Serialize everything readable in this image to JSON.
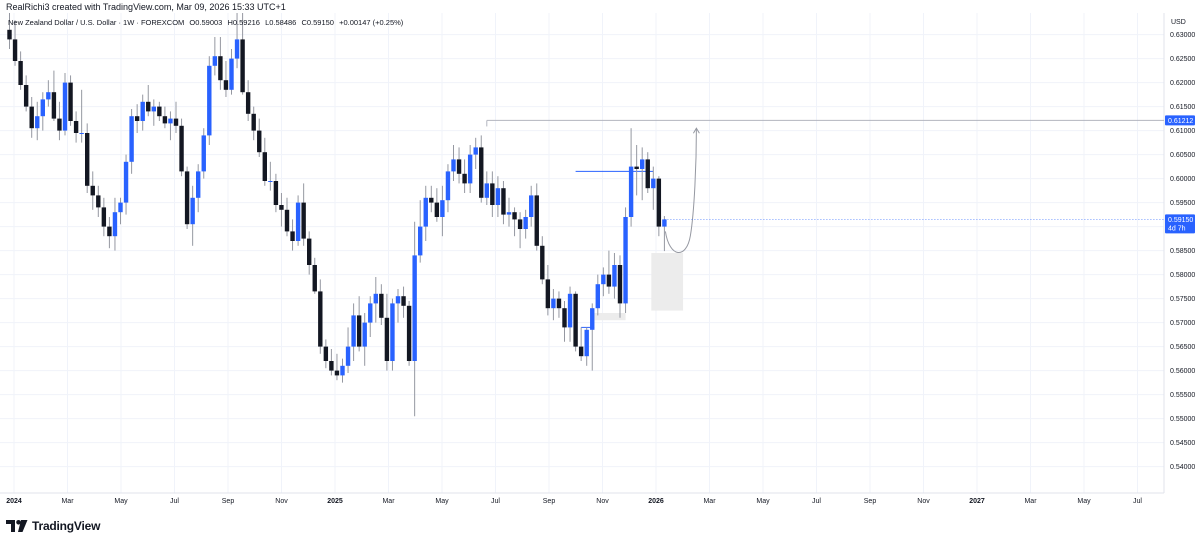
{
  "header": {
    "attribution": "RealRichi3 created with TradingView.com, Mar 09, 2026 15:33 UTC+1"
  },
  "legend": {
    "symbol": "New Zealand Dollar / U.S. Dollar · 1W · FOREXCOM",
    "open": "O0.59003",
    "high": "H0.59216",
    "low": "L0.58486",
    "close": "C0.59150",
    "change": "+0.00147 (+0.25%)"
  },
  "price_axis": {
    "currency": "USD",
    "ticks": [
      "0.63000",
      "0.62500",
      "0.62000",
      "0.61500",
      "0.61000",
      "0.60500",
      "0.60000",
      "0.59500",
      "0.59000",
      "0.58500",
      "0.58000",
      "0.57500",
      "0.57000",
      "0.56500",
      "0.56000",
      "0.55500",
      "0.55000",
      "0.54500",
      "0.54000"
    ],
    "marker_level": "0.61212",
    "current_price": "0.59150",
    "countdown": "4d 7h"
  },
  "time_axis": {
    "labels": [
      "2024",
      "Mar",
      "May",
      "Jul",
      "Sep",
      "Nov",
      "2025",
      "Mar",
      "May",
      "Jul",
      "Sep",
      "Nov",
      "2026",
      "Mar",
      "May",
      "Jul",
      "Sep",
      "Nov",
      "2027",
      "Mar",
      "May",
      "Jul"
    ],
    "bold": [
      "2024",
      "2025",
      "2026",
      "2027"
    ]
  },
  "footer": {
    "brand": "TradingView"
  },
  "colors": {
    "bull": "#2962ff",
    "bear": "#131722",
    "wick": "#9598a1",
    "grid": "#f0f3fa",
    "zone": "#ececec",
    "level_line": "#b2b5be",
    "blue_line": "#2962ff"
  },
  "chart_data": {
    "type": "candlestick",
    "timeframe": "1W",
    "ylim": [
      0.5345,
      0.6345
    ],
    "x_start": "2024-01-01",
    "weeks_shown": 143,
    "candles": [
      [
        0.631,
        0.6348,
        0.627,
        0.629
      ],
      [
        0.629,
        0.633,
        0.6235,
        0.6245
      ],
      [
        0.6245,
        0.6265,
        0.6185,
        0.6195
      ],
      [
        0.6195,
        0.6215,
        0.614,
        0.615
      ],
      [
        0.615,
        0.617,
        0.6085,
        0.6105
      ],
      [
        0.6105,
        0.616,
        0.608,
        0.613
      ],
      [
        0.613,
        0.618,
        0.61,
        0.6165
      ],
      [
        0.6165,
        0.6205,
        0.615,
        0.618
      ],
      [
        0.618,
        0.6225,
        0.612,
        0.6125
      ],
      [
        0.6125,
        0.616,
        0.608,
        0.61
      ],
      [
        0.61,
        0.622,
        0.609,
        0.62
      ],
      [
        0.62,
        0.6215,
        0.611,
        0.612
      ],
      [
        0.612,
        0.614,
        0.6075,
        0.6095
      ],
      [
        0.6095,
        0.6185,
        0.6075,
        0.6095
      ],
      [
        0.6095,
        0.6115,
        0.597,
        0.5985
      ],
      [
        0.5985,
        0.6015,
        0.5935,
        0.5965
      ],
      [
        0.5965,
        0.5985,
        0.592,
        0.594
      ],
      [
        0.594,
        0.596,
        0.588,
        0.59
      ],
      [
        0.59,
        0.592,
        0.5855,
        0.588
      ],
      [
        0.588,
        0.596,
        0.585,
        0.593
      ],
      [
        0.593,
        0.596,
        0.5905,
        0.595
      ],
      [
        0.595,
        0.605,
        0.5925,
        0.6035
      ],
      [
        0.6035,
        0.6145,
        0.601,
        0.613
      ],
      [
        0.613,
        0.6155,
        0.6095,
        0.612
      ],
      [
        0.612,
        0.6175,
        0.61,
        0.616
      ],
      [
        0.616,
        0.6195,
        0.613,
        0.614
      ],
      [
        0.614,
        0.6165,
        0.611,
        0.615
      ],
      [
        0.615,
        0.616,
        0.612,
        0.613
      ],
      [
        0.613,
        0.615,
        0.6105,
        0.6115
      ],
      [
        0.6115,
        0.614,
        0.608,
        0.6125
      ],
      [
        0.6125,
        0.616,
        0.6095,
        0.611
      ],
      [
        0.611,
        0.6125,
        0.6005,
        0.6015
      ],
      [
        0.6015,
        0.6025,
        0.5895,
        0.5905
      ],
      [
        0.5905,
        0.5985,
        0.586,
        0.596
      ],
      [
        0.596,
        0.603,
        0.593,
        0.6015
      ],
      [
        0.6015,
        0.6105,
        0.6,
        0.609
      ],
      [
        0.609,
        0.6255,
        0.607,
        0.6235
      ],
      [
        0.6235,
        0.6295,
        0.6215,
        0.6255
      ],
      [
        0.6255,
        0.6295,
        0.6185,
        0.6205
      ],
      [
        0.6205,
        0.6245,
        0.617,
        0.6185
      ],
      [
        0.6185,
        0.627,
        0.6175,
        0.625
      ],
      [
        0.625,
        0.6345,
        0.623,
        0.629
      ],
      [
        0.629,
        0.6345,
        0.6175,
        0.618
      ],
      [
        0.618,
        0.6205,
        0.612,
        0.6135
      ],
      [
        0.6135,
        0.615,
        0.608,
        0.61
      ],
      [
        0.61,
        0.6125,
        0.6045,
        0.6055
      ],
      [
        0.6055,
        0.6085,
        0.5985,
        0.5995
      ],
      [
        0.5995,
        0.6035,
        0.5975,
        0.5995
      ],
      [
        0.5995,
        0.601,
        0.593,
        0.5945
      ],
      [
        0.5945,
        0.597,
        0.59,
        0.5935
      ],
      [
        0.5935,
        0.596,
        0.588,
        0.589
      ],
      [
        0.589,
        0.5915,
        0.585,
        0.587
      ],
      [
        0.587,
        0.5965,
        0.586,
        0.595
      ],
      [
        0.595,
        0.599,
        0.586,
        0.5875
      ],
      [
        0.5875,
        0.589,
        0.58,
        0.582
      ],
      [
        0.582,
        0.5835,
        0.576,
        0.5765
      ],
      [
        0.5765,
        0.579,
        0.5635,
        0.565
      ],
      [
        0.565,
        0.5665,
        0.5605,
        0.562
      ],
      [
        0.562,
        0.5645,
        0.559,
        0.56
      ],
      [
        0.56,
        0.5635,
        0.558,
        0.559
      ],
      [
        0.559,
        0.5625,
        0.5575,
        0.561
      ],
      [
        0.561,
        0.569,
        0.5595,
        0.565
      ],
      [
        0.565,
        0.574,
        0.562,
        0.5715
      ],
      [
        0.5715,
        0.5755,
        0.564,
        0.565
      ],
      [
        0.565,
        0.572,
        0.561,
        0.57
      ],
      [
        0.57,
        0.5755,
        0.567,
        0.574
      ],
      [
        0.574,
        0.5795,
        0.57,
        0.576
      ],
      [
        0.576,
        0.578,
        0.5695,
        0.571
      ],
      [
        0.571,
        0.576,
        0.56,
        0.562
      ],
      [
        0.562,
        0.575,
        0.56,
        0.574
      ],
      [
        0.574,
        0.577,
        0.57,
        0.5755
      ],
      [
        0.5755,
        0.5775,
        0.571,
        0.5735
      ],
      [
        0.5735,
        0.5745,
        0.561,
        0.562
      ],
      [
        0.562,
        0.591,
        0.5505,
        0.584
      ],
      [
        0.584,
        0.5955,
        0.5825,
        0.59
      ],
      [
        0.59,
        0.5985,
        0.587,
        0.596
      ],
      [
        0.596,
        0.5985,
        0.593,
        0.595
      ],
      [
        0.595,
        0.598,
        0.591,
        0.592
      ],
      [
        0.592,
        0.5985,
        0.588,
        0.5955
      ],
      [
        0.5955,
        0.603,
        0.593,
        0.6015
      ],
      [
        0.6015,
        0.607,
        0.5995,
        0.604
      ],
      [
        0.604,
        0.6065,
        0.599,
        0.601
      ],
      [
        0.601,
        0.604,
        0.597,
        0.599
      ],
      [
        0.599,
        0.607,
        0.597,
        0.605
      ],
      [
        0.605,
        0.6085,
        0.602,
        0.6065
      ],
      [
        0.6065,
        0.609,
        0.595,
        0.596
      ],
      [
        0.596,
        0.6015,
        0.5945,
        0.599
      ],
      [
        0.599,
        0.6015,
        0.592,
        0.5945
      ],
      [
        0.5945,
        0.6005,
        0.592,
        0.598
      ],
      [
        0.598,
        0.5995,
        0.5905,
        0.5925
      ],
      [
        0.5925,
        0.596,
        0.59,
        0.593
      ],
      [
        0.593,
        0.594,
        0.588,
        0.5915
      ],
      [
        0.5915,
        0.593,
        0.5855,
        0.5895
      ],
      [
        0.5895,
        0.5935,
        0.5875,
        0.592
      ],
      [
        0.592,
        0.5985,
        0.59,
        0.5965
      ],
      [
        0.5965,
        0.599,
        0.585,
        0.586
      ],
      [
        0.586,
        0.588,
        0.578,
        0.579
      ],
      [
        0.579,
        0.582,
        0.5715,
        0.573
      ],
      [
        0.573,
        0.577,
        0.5705,
        0.575
      ],
      [
        0.575,
        0.5765,
        0.571,
        0.573
      ],
      [
        0.573,
        0.5745,
        0.566,
        0.569
      ],
      [
        0.569,
        0.5775,
        0.566,
        0.576
      ],
      [
        0.576,
        0.5765,
        0.564,
        0.565
      ],
      [
        0.565,
        0.569,
        0.562,
        0.563
      ],
      [
        0.563,
        0.569,
        0.561,
        0.5685
      ],
      [
        0.5685,
        0.574,
        0.56,
        0.573
      ],
      [
        0.573,
        0.58,
        0.5715,
        0.578
      ],
      [
        0.578,
        0.5815,
        0.5755,
        0.58
      ],
      [
        0.58,
        0.585,
        0.576,
        0.5775
      ],
      [
        0.5775,
        0.5845,
        0.575,
        0.582
      ],
      [
        0.582,
        0.584,
        0.571,
        0.574
      ],
      [
        0.574,
        0.594,
        0.572,
        0.592
      ],
      [
        0.592,
        0.6105,
        0.59,
        0.6025
      ],
      [
        0.6025,
        0.607,
        0.5965,
        0.602
      ],
      [
        0.602,
        0.6065,
        0.5955,
        0.604
      ],
      [
        0.604,
        0.6055,
        0.597,
        0.598
      ],
      [
        0.598,
        0.6025,
        0.5935,
        0.6
      ],
      [
        0.6,
        0.6005,
        0.588,
        0.59
      ],
      [
        0.59,
        0.5922,
        0.5849,
        0.5915
      ]
    ],
    "annotations": {
      "key_level": 0.61212,
      "blue_level": {
        "from_week": 102,
        "to_week": 116,
        "price": 0.6015
      },
      "small_level": {
        "from_week": 103,
        "to_week": 105,
        "price": 0.569
      },
      "demand_zone": {
        "from_week": 116,
        "to_week": 121,
        "top": 0.5845,
        "bottom": 0.5725
      },
      "weak_zone": {
        "from_week": 105,
        "to_week": 111,
        "top": 0.572,
        "bottom": 0.5705
      },
      "projection": "curved arrow from current price dipping to ~0.5850 then rising to ~0.6110"
    }
  }
}
